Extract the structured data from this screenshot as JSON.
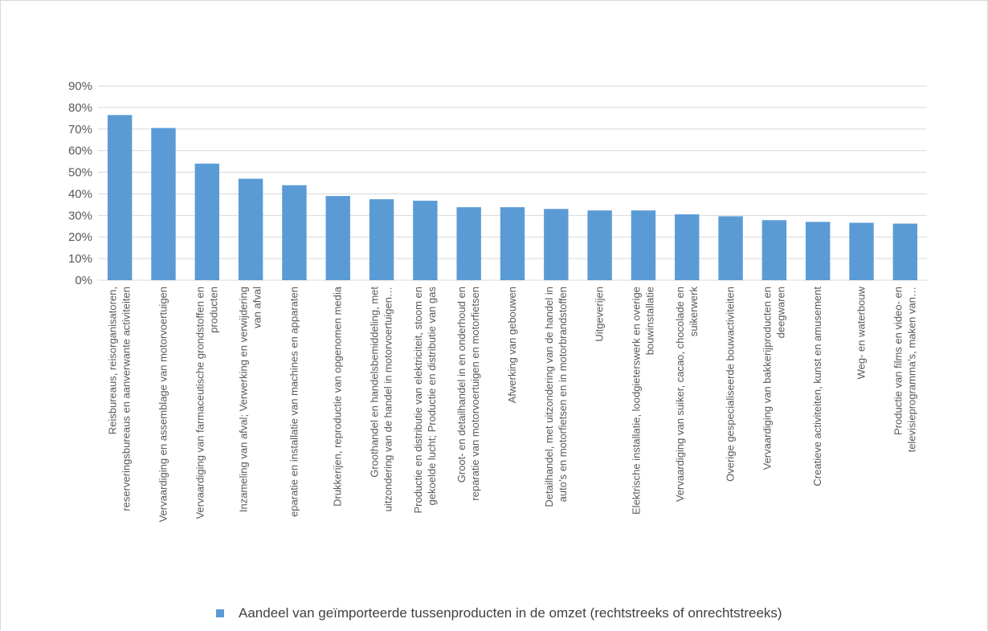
{
  "chart_data": {
    "type": "bar",
    "categories": [
      [
        "Reisbureaus, reisorganisatoren,",
        "reserveringsbureaus en aanverwante activiteiten"
      ],
      [
        "Vervaardiging en assemblage van motorvoertuigen"
      ],
      [
        "Vervaardiging van farmaceutische grondstoffen en",
        "producten"
      ],
      [
        "Inzameling van afval; Verwerking en verwijdering",
        "van afval"
      ],
      [
        "eparatie en installatie van machines en apparaten"
      ],
      [
        "Drukkerijen, reproductie van opgenomen media"
      ],
      [
        "Groothandel en handelsbemiddeling, met",
        "uitzondering van de handel in motorvoertuigen…"
      ],
      [
        "Productie en distributie van elektriciteit, stoom en",
        "gekoelde lucht; Productie en distributie van gas"
      ],
      [
        "Groot- en detailhandel in en onderhoud en",
        "reparatie van motorvoertuigen en motorfietsen"
      ],
      [
        "Afwerking van gebouwen"
      ],
      [
        "Detailhandel, met uitzondering van de handel in",
        "auto’s en motorfietsen en in motorbrandstoffen"
      ],
      [
        "Uitgeverijen"
      ],
      [
        "Elektrische installatie, loodgieterswerk en overige",
        "bouwinstallatie"
      ],
      [
        "Vervaardiging van suiker, cacao, chocolade en",
        "suikerwerk"
      ],
      [
        "Overige gespecialiseerde bouwactiviteiten"
      ],
      [
        "Vervaardiging van bakkerijproducten en",
        "deegwaren"
      ],
      [
        "Creatieve activiteiten, kunst en amusement"
      ],
      [
        "Weg- en waterbouw"
      ],
      [
        "Productie van films en video- en",
        "televisieprogramma’s, maken van…"
      ]
    ],
    "series": [
      {
        "name": "Aandeel van geïmporteerde tussenproducten in de omzet (rechtstreeks of onrechtstreeks)",
        "values": [
          76.5,
          70.5,
          54,
          47,
          44,
          39,
          37.5,
          36.8,
          33.8,
          33.8,
          33,
          32.3,
          32.3,
          30.5,
          29.6,
          27.8,
          27,
          26.6,
          26.2
        ]
      }
    ],
    "yticks": [
      "0%",
      "10%",
      "20%",
      "30%",
      "40%",
      "50%",
      "60%",
      "70%",
      "80%",
      "90%"
    ],
    "ylim": [
      0,
      90
    ],
    "grid": true,
    "legend_position": "bottom",
    "colors": {
      "bar": "#5b9bd5",
      "grid": "#d9d9d9",
      "text": "#595959"
    }
  }
}
